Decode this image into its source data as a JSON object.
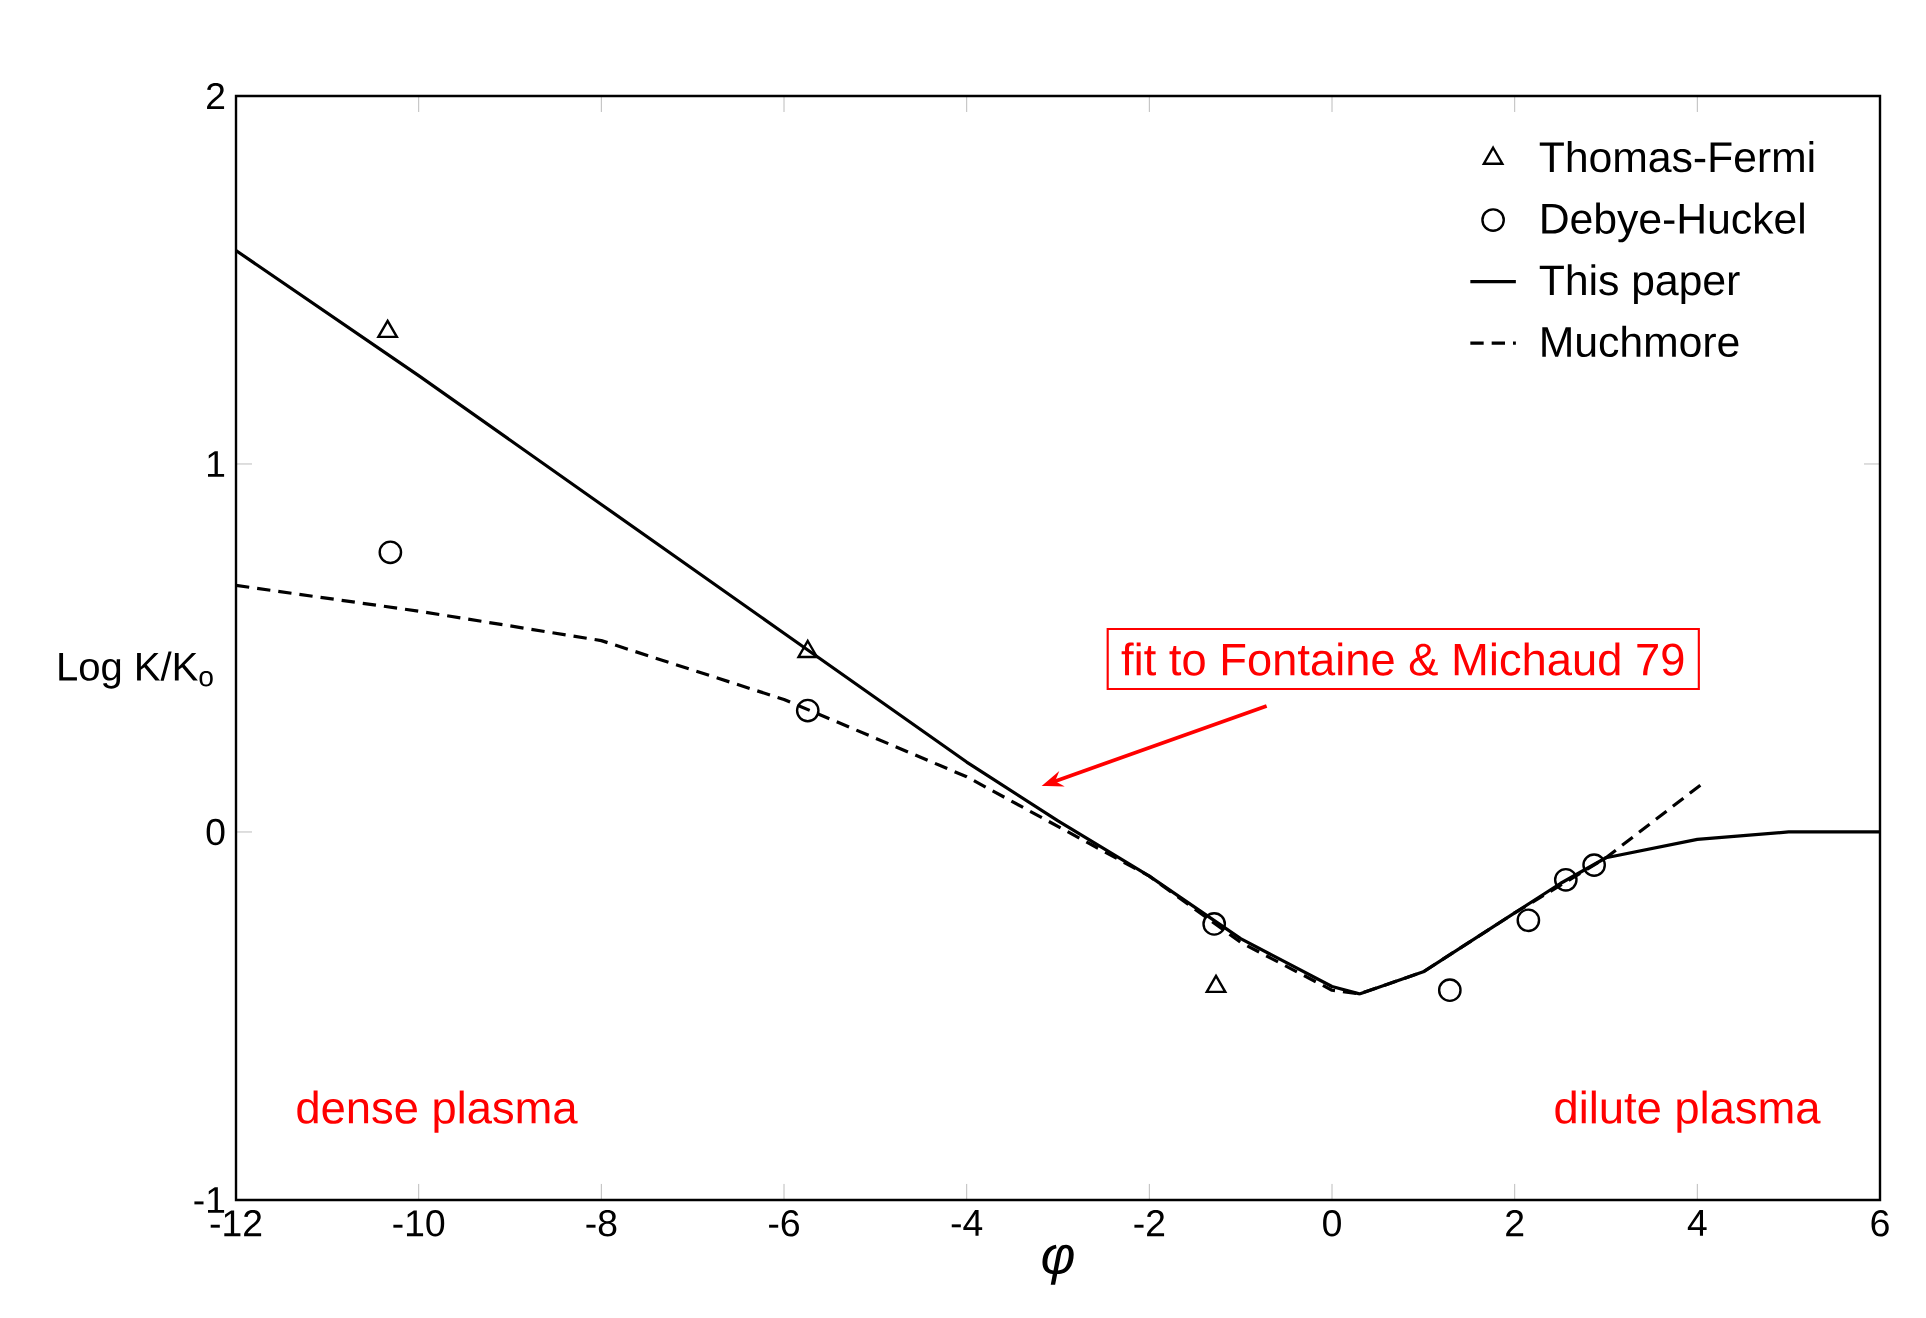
{
  "chart_data": {
    "type": "line",
    "xlabel": "φ",
    "ylabel": "Log K/K$_{o}$",
    "xlim": [
      -12,
      6
    ],
    "ylim": [
      -1,
      2
    ],
    "xticks": [
      -12,
      -10,
      -8,
      -6,
      -4,
      -2,
      0,
      2,
      4,
      6
    ],
    "yticks": [
      -1,
      0,
      1,
      2
    ],
    "legend": "top right",
    "grid": false,
    "series": [
      {
        "name": "Thomas-Fermi",
        "type": "scatter",
        "marker": "triangle",
        "color": "#000000",
        "x": [
          -10.34,
          -5.74,
          -1.27
        ],
        "values": [
          1.36,
          0.49,
          -0.42
        ]
      },
      {
        "name": "Debye-Huckel",
        "type": "scatter",
        "marker": "circle",
        "color": "#000000",
        "x": [
          -10.31,
          -5.74,
          -1.29,
          1.29,
          2.15,
          2.56,
          2.87
        ],
        "values": [
          0.76,
          0.33,
          -0.25,
          -0.43,
          -0.24,
          -0.13,
          -0.09
        ]
      },
      {
        "name": "This paper",
        "line_style": "solid",
        "color": "#000000",
        "x": [
          -12,
          -10,
          -8,
          -6,
          -4,
          -3,
          -2,
          -1,
          0,
          0.3,
          1,
          2,
          2.5,
          3,
          4,
          5,
          6
        ],
        "values": [
          1.58,
          1.24,
          0.89,
          0.54,
          0.19,
          0.03,
          -0.12,
          -0.29,
          -0.42,
          -0.44,
          -0.38,
          -0.22,
          -0.14,
          -0.07,
          -0.02,
          0,
          0
        ]
      },
      {
        "name": "Muchmore",
        "line_style": "dashed",
        "color": "#000000",
        "x": [
          -12,
          -10,
          -8,
          -6,
          -4,
          -2,
          -1,
          0,
          0.3,
          1,
          2,
          3,
          4.1
        ],
        "values": [
          0.67,
          0.6,
          0.52,
          0.36,
          0.15,
          -0.12,
          -0.3,
          -0.43,
          -0.44,
          -0.38,
          -0.22,
          -0.07,
          0.14
        ]
      }
    ],
    "annotations": [
      "fit to Fontaine & Michaud 79",
      "dense plasma",
      "dilute plasma"
    ]
  }
}
